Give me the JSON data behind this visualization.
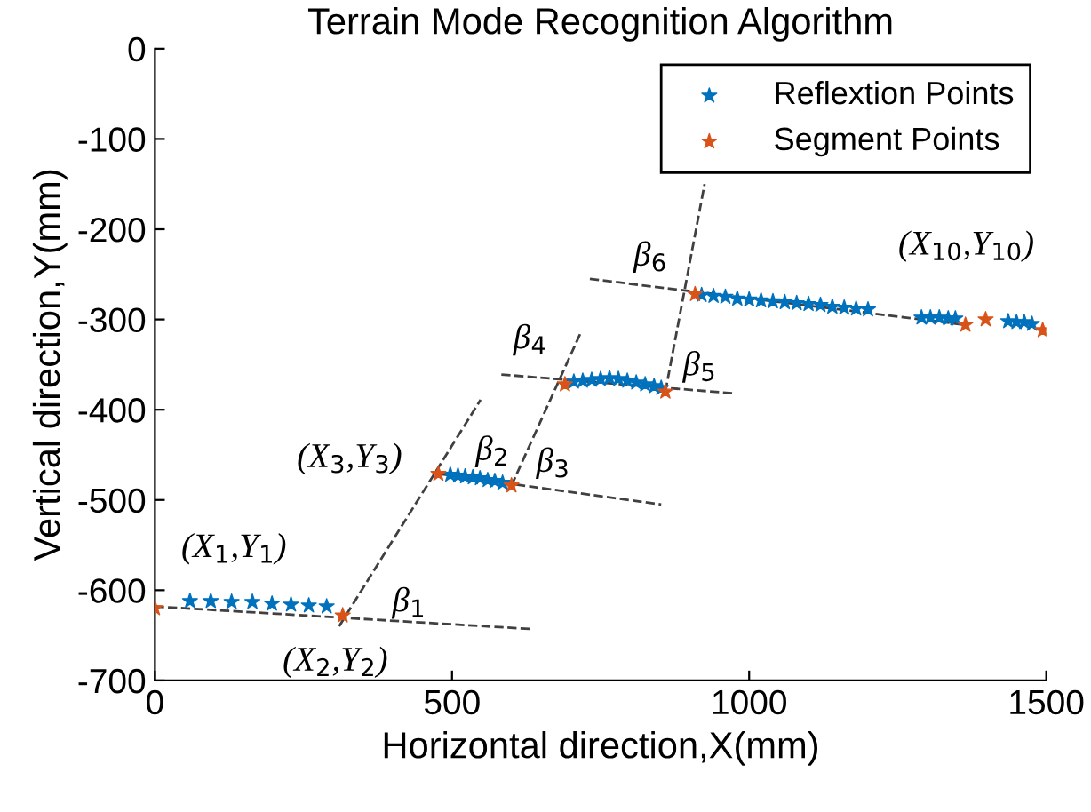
{
  "chart_data": {
    "type": "scatter",
    "title": "Terrain Mode Recognition Algorithm",
    "xlabel": "Horizontal direction,X(mm)",
    "ylabel": "Vertical direction,Y(mm)",
    "xlim": [
      0,
      1500
    ],
    "xticks": [
      0,
      500,
      1000,
      1500
    ],
    "ylim": [
      -700,
      0
    ],
    "yticks": [
      -700,
      -600,
      -500,
      -400,
      -300,
      -200,
      -100,
      0
    ],
    "grid": false,
    "legend": "top right",
    "marker": "star",
    "series": [
      {
        "name": "Reflextion Points",
        "color": "#0072bd",
        "x": [
          59,
          94,
          129,
          164,
          197,
          229,
          259,
          289,
          497,
          510,
          522,
          535,
          547,
          560,
          572,
          585,
          705,
          720,
          735,
          750,
          765,
          780,
          795,
          810,
          825,
          840,
          852,
          920,
          940,
          960,
          980,
          1000,
          1020,
          1040,
          1060,
          1080,
          1100,
          1120,
          1140,
          1160,
          1180,
          1200,
          1290,
          1305,
          1320,
          1335,
          1347,
          1436,
          1450,
          1463,
          1476
        ],
        "values": [
          -612,
          -612,
          -613,
          -613,
          -615,
          -616,
          -617,
          -618,
          -472,
          -473,
          -474,
          -475,
          -476,
          -478,
          -479,
          -481,
          -369,
          -368,
          -367,
          -366,
          -365,
          -366,
          -368,
          -370,
          -372,
          -374,
          -376,
          -273,
          -274,
          -275,
          -277,
          -278,
          -279,
          -280,
          -281,
          -282,
          -283,
          -284,
          -286,
          -287,
          -288,
          -289,
          -298,
          -298,
          -298,
          -299,
          -299,
          -302,
          -303,
          -303,
          -305
        ]
      },
      {
        "name": "Segment Points",
        "color": "#d95319",
        "x": [
          0,
          316,
          477,
          600,
          690,
          859,
          909,
          1364,
          1398,
          1494
        ],
        "values": [
          -620,
          -628,
          -471,
          -484,
          -372,
          -380,
          -272,
          -306,
          -300,
          -312
        ]
      },
      {
        "color": "#404040",
        "type": "line",
        "line_style": "dashed",
        "marker": "none",
        "x": [
          0,
          632
        ],
        "values": [
          -618,
          -643
        ]
      },
      {
        "color": "#404040",
        "type": "line",
        "line_style": "dashed",
        "marker": "none",
        "x": [
          310,
          548
        ],
        "values": [
          -640,
          -389
        ]
      },
      {
        "color": "#404040",
        "type": "line",
        "line_style": "dashed",
        "marker": "none",
        "x": [
          477,
          852
        ],
        "values": [
          -471,
          -505
        ]
      },
      {
        "color": "#404040",
        "type": "line",
        "line_style": "dashed",
        "marker": "none",
        "x": [
          600,
          717
        ],
        "values": [
          -484,
          -314
        ]
      },
      {
        "color": "#404040",
        "type": "line",
        "line_style": "dashed",
        "marker": "none",
        "x": [
          583,
          976
        ],
        "values": [
          -361,
          -382
        ]
      },
      {
        "color": "#404040",
        "type": "line",
        "line_style": "dashed",
        "marker": "none",
        "x": [
          859,
          925
        ],
        "values": [
          -380,
          -150
        ]
      },
      {
        "color": "#404040",
        "type": "line",
        "line_style": "dashed",
        "marker": "none",
        "x": [
          732,
          1364
        ],
        "values": [
          -255,
          -306
        ]
      }
    ],
    "annotations": [
      {
        "text": "(X$_{1}$,Y$_{1}$)",
        "x": 0,
        "y": -620
      },
      {
        "text": "(X$_{2}$,Y$_{2}$)",
        "x": 316,
        "y": -628
      },
      {
        "text": "(X$_{3}$,Y$_{3}$)",
        "x": 477,
        "y": -471
      },
      {
        "text": "(X$_{10}$,Y$_{10}$)",
        "x": 1494,
        "y": -312
      },
      {
        "text": "β$_{1}$",
        "x": 316,
        "y": -628
      },
      {
        "text": "β$_{2}$",
        "x": 477,
        "y": -471
      },
      {
        "text": "β$_{3}$",
        "x": 600,
        "y": -484
      },
      {
        "text": "β$_{4}$",
        "x": 690,
        "y": -372
      },
      {
        "text": "β$_{5}$",
        "x": 859,
        "y": -380
      },
      {
        "text": "β$_{6}$",
        "x": 909,
        "y": -272
      }
    ]
  }
}
